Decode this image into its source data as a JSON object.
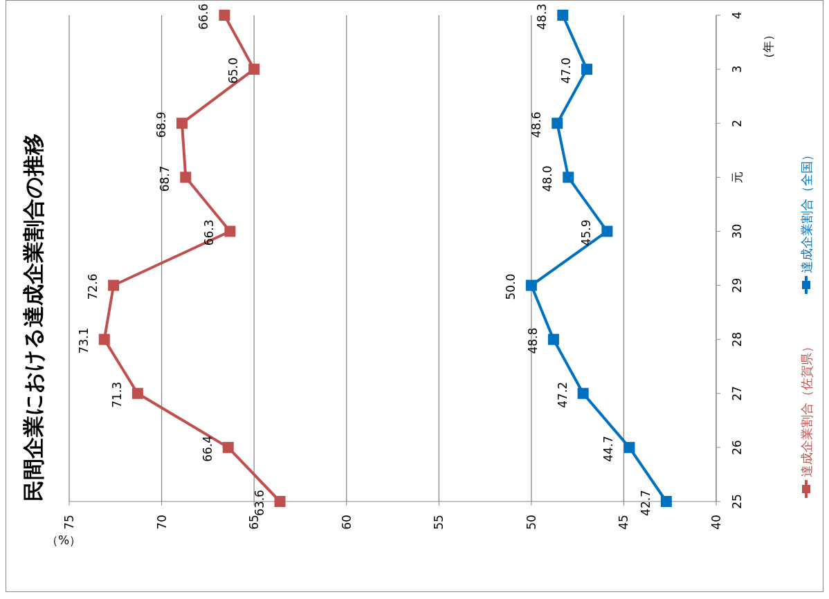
{
  "chart_data": {
    "type": "line",
    "orientation": "horizontal",
    "title": "民間企業における達成企業割合の推移",
    "xlabel": "（%）",
    "ylabel": "（年）",
    "categories": [
      "4",
      "3",
      "2",
      "元",
      "30",
      "29",
      "28",
      "27",
      "26",
      "25"
    ],
    "xlim": [
      75,
      40
    ],
    "xticks": [
      75,
      70,
      65,
      60,
      55,
      50,
      45,
      40
    ],
    "grid": "x",
    "legend": "right",
    "marker": "square",
    "line_style": "solid",
    "series": [
      {
        "name": "達成企業割合（佐賀県）",
        "color": "#c0504d",
        "values": [
          66.6,
          65.0,
          68.9,
          68.7,
          66.3,
          72.6,
          73.1,
          71.3,
          66.4,
          63.6
        ],
        "value_labels": [
          "66.6",
          "65.0",
          "68.9",
          "68.7",
          "66.3",
          "72.6",
          "73.1",
          "71.3",
          "66.4",
          "63.6"
        ]
      },
      {
        "name": "達成企業割合（全国）",
        "color": "#0070c0",
        "values": [
          48.3,
          47.0,
          48.6,
          48.0,
          45.9,
          50.0,
          48.8,
          47.2,
          44.7,
          42.7
        ],
        "value_labels": [
          "48.3",
          "47.0",
          "48.6",
          "48.0",
          "45.9",
          "50.0",
          "48.8",
          "47.2",
          "44.7",
          "42.7"
        ]
      }
    ]
  }
}
